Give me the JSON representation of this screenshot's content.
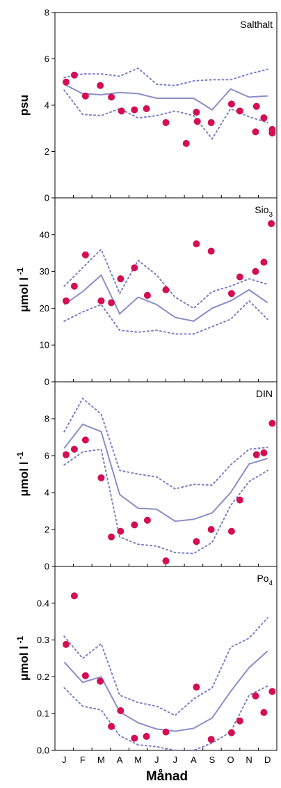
{
  "chart_data": [
    {
      "type": "line",
      "title": "Salthalt",
      "ylabel": "psu",
      "ylim": [
        0,
        8
      ],
      "yticks": [
        0,
        2,
        4,
        6,
        8
      ],
      "x": [
        "J",
        "F",
        "M",
        "A",
        "M",
        "J",
        "J",
        "A",
        "S",
        "O",
        "N",
        "D"
      ],
      "mean": [
        4.9,
        4.5,
        4.45,
        4.55,
        4.5,
        4.3,
        4.3,
        4.3,
        3.8,
        4.7,
        4.35,
        4.4
      ],
      "upper": [
        5.2,
        5.35,
        5.35,
        5.25,
        5.6,
        4.9,
        4.85,
        5.05,
        5.1,
        5.1,
        5.35,
        5.55
      ],
      "lower": [
        4.65,
        3.6,
        3.55,
        3.85,
        3.45,
        3.55,
        3.75,
        3.55,
        2.55,
        3.85,
        3.5,
        3.25
      ],
      "observations": [
        {
          "x": 1.1,
          "y": 5.0
        },
        {
          "x": 1.55,
          "y": 5.3
        },
        {
          "x": 2.15,
          "y": 4.4
        },
        {
          "x": 2.95,
          "y": 4.85
        },
        {
          "x": 3.55,
          "y": 4.35
        },
        {
          "x": 4.1,
          "y": 3.75
        },
        {
          "x": 4.8,
          "y": 3.8
        },
        {
          "x": 5.45,
          "y": 3.85
        },
        {
          "x": 6.5,
          "y": 3.25
        },
        {
          "x": 7.6,
          "y": 2.35
        },
        {
          "x": 8.15,
          "y": 3.7
        },
        {
          "x": 8.2,
          "y": 3.3
        },
        {
          "x": 8.95,
          "y": 3.25
        },
        {
          "x": 10.05,
          "y": 4.05
        },
        {
          "x": 10.5,
          "y": 3.75
        },
        {
          "x": 11.4,
          "y": 3.95
        },
        {
          "x": 11.8,
          "y": 3.45
        },
        {
          "x": 11.35,
          "y": 2.85
        },
        {
          "x": 12.25,
          "y": 2.95
        },
        {
          "x": 12.25,
          "y": 2.8
        }
      ]
    },
    {
      "type": "line",
      "title": "Sio",
      "title_sub": "3",
      "ylabel": "μmol l",
      "ylabel_sup": "-1",
      "ylim": [
        0,
        50
      ],
      "yticks": [
        0,
        10,
        20,
        30,
        40
      ],
      "x": [
        "J",
        "F",
        "M",
        "A",
        "M",
        "J",
        "J",
        "A",
        "S",
        "O",
        "N",
        "D"
      ],
      "mean": [
        21,
        24.5,
        29,
        18.5,
        23,
        21,
        17.5,
        16.5,
        20,
        22,
        25,
        21.5
      ],
      "upper": [
        26,
        31,
        36,
        24,
        33,
        29,
        23,
        20,
        24.5,
        26,
        28,
        26.5
      ],
      "lower": [
        16.5,
        19,
        21,
        14,
        13.5,
        14,
        13,
        13,
        15,
        17,
        22,
        17
      ],
      "observations": [
        {
          "x": 1.1,
          "y": 22
        },
        {
          "x": 1.55,
          "y": 26
        },
        {
          "x": 2.15,
          "y": 34.5
        },
        {
          "x": 3.0,
          "y": 22
        },
        {
          "x": 3.55,
          "y": 21.5
        },
        {
          "x": 4.05,
          "y": 28
        },
        {
          "x": 4.8,
          "y": 31
        },
        {
          "x": 5.5,
          "y": 23.5
        },
        {
          "x": 6.5,
          "y": 25
        },
        {
          "x": 8.15,
          "y": 37.5
        },
        {
          "x": 8.95,
          "y": 35.5
        },
        {
          "x": 10.05,
          "y": 24
        },
        {
          "x": 10.5,
          "y": 28.5
        },
        {
          "x": 11.35,
          "y": 30
        },
        {
          "x": 11.8,
          "y": 32.5
        },
        {
          "x": 12.2,
          "y": 43
        }
      ]
    },
    {
      "type": "line",
      "title": "DIN",
      "ylabel": "μmol l",
      "ylabel_sup": "-1",
      "ylim": [
        0,
        10
      ],
      "yticks": [
        0,
        2,
        4,
        6,
        8
      ],
      "x": [
        "J",
        "F",
        "M",
        "A",
        "M",
        "J",
        "J",
        "A",
        "S",
        "O",
        "N",
        "D"
      ],
      "mean": [
        6.4,
        7.7,
        7.3,
        3.9,
        3.15,
        3.1,
        2.45,
        2.55,
        2.9,
        4.0,
        5.55,
        5.85
      ],
      "upper": [
        7.3,
        9.1,
        8.25,
        5.2,
        5.0,
        4.85,
        4.2,
        4.45,
        4.4,
        5.5,
        6.35,
        6.45
      ],
      "lower": [
        5.5,
        6.2,
        6.35,
        1.6,
        1.2,
        1.1,
        0.75,
        0.7,
        1.3,
        3.3,
        4.6,
        5.2
      ],
      "observations": [
        {
          "x": 1.1,
          "y": 6.05
        },
        {
          "x": 1.55,
          "y": 6.35
        },
        {
          "x": 2.15,
          "y": 6.85
        },
        {
          "x": 3.0,
          "y": 4.8
        },
        {
          "x": 3.55,
          "y": 1.6
        },
        {
          "x": 4.05,
          "y": 1.9
        },
        {
          "x": 4.8,
          "y": 2.25
        },
        {
          "x": 5.5,
          "y": 2.5
        },
        {
          "x": 6.5,
          "y": 0.3
        },
        {
          "x": 8.15,
          "y": 1.35
        },
        {
          "x": 8.95,
          "y": 2.0
        },
        {
          "x": 10.05,
          "y": 1.9
        },
        {
          "x": 10.5,
          "y": 3.6
        },
        {
          "x": 11.4,
          "y": 6.05
        },
        {
          "x": 11.8,
          "y": 6.15
        },
        {
          "x": 12.25,
          "y": 7.75
        }
      ]
    },
    {
      "type": "line",
      "title": "Po",
      "title_sub": "4",
      "ylabel": "μmol l",
      "ylabel_sup": "-1",
      "xlabel": "Månad",
      "ylim": [
        0,
        0.5
      ],
      "yticks": [
        0.0,
        0.1,
        0.2,
        0.3,
        0.4
      ],
      "ytick_labels": [
        "0.0",
        "0.1",
        "0.2",
        "0.3",
        "0.4"
      ],
      "x": [
        "J",
        "F",
        "M",
        "A",
        "M",
        "J",
        "J",
        "A",
        "S",
        "O",
        "N",
        "D"
      ],
      "mean": [
        0.24,
        0.185,
        0.2,
        0.105,
        0.075,
        0.058,
        0.052,
        0.06,
        0.088,
        0.16,
        0.225,
        0.27
      ],
      "upper": [
        0.31,
        0.25,
        0.29,
        0.15,
        0.13,
        0.12,
        0.095,
        0.14,
        0.17,
        0.28,
        0.305,
        0.36
      ],
      "lower": [
        0.17,
        0.12,
        0.11,
        0.04,
        0.015,
        0.01,
        0.0,
        0.0,
        0.02,
        0.05,
        0.15,
        0.175
      ],
      "observations": [
        {
          "x": 1.1,
          "y": 0.288
        },
        {
          "x": 1.55,
          "y": 0.42
        },
        {
          "x": 2.15,
          "y": 0.203
        },
        {
          "x": 2.95,
          "y": 0.188
        },
        {
          "x": 3.55,
          "y": 0.065
        },
        {
          "x": 4.05,
          "y": 0.108
        },
        {
          "x": 4.8,
          "y": 0.033
        },
        {
          "x": 5.45,
          "y": 0.038
        },
        {
          "x": 6.5,
          "y": 0.05
        },
        {
          "x": 8.15,
          "y": 0.172
        },
        {
          "x": 8.95,
          "y": 0.03
        },
        {
          "x": 10.05,
          "y": 0.048
        },
        {
          "x": 10.5,
          "y": 0.08
        },
        {
          "x": 11.35,
          "y": 0.148
        },
        {
          "x": 11.8,
          "y": 0.103
        },
        {
          "x": 12.25,
          "y": 0.16
        }
      ]
    }
  ],
  "colors": {
    "mean_line": "#8a8ec8",
    "band_line": "#7a7fc4",
    "marker": "#d40e52",
    "axis": "#000000",
    "background": "#ffffff"
  }
}
